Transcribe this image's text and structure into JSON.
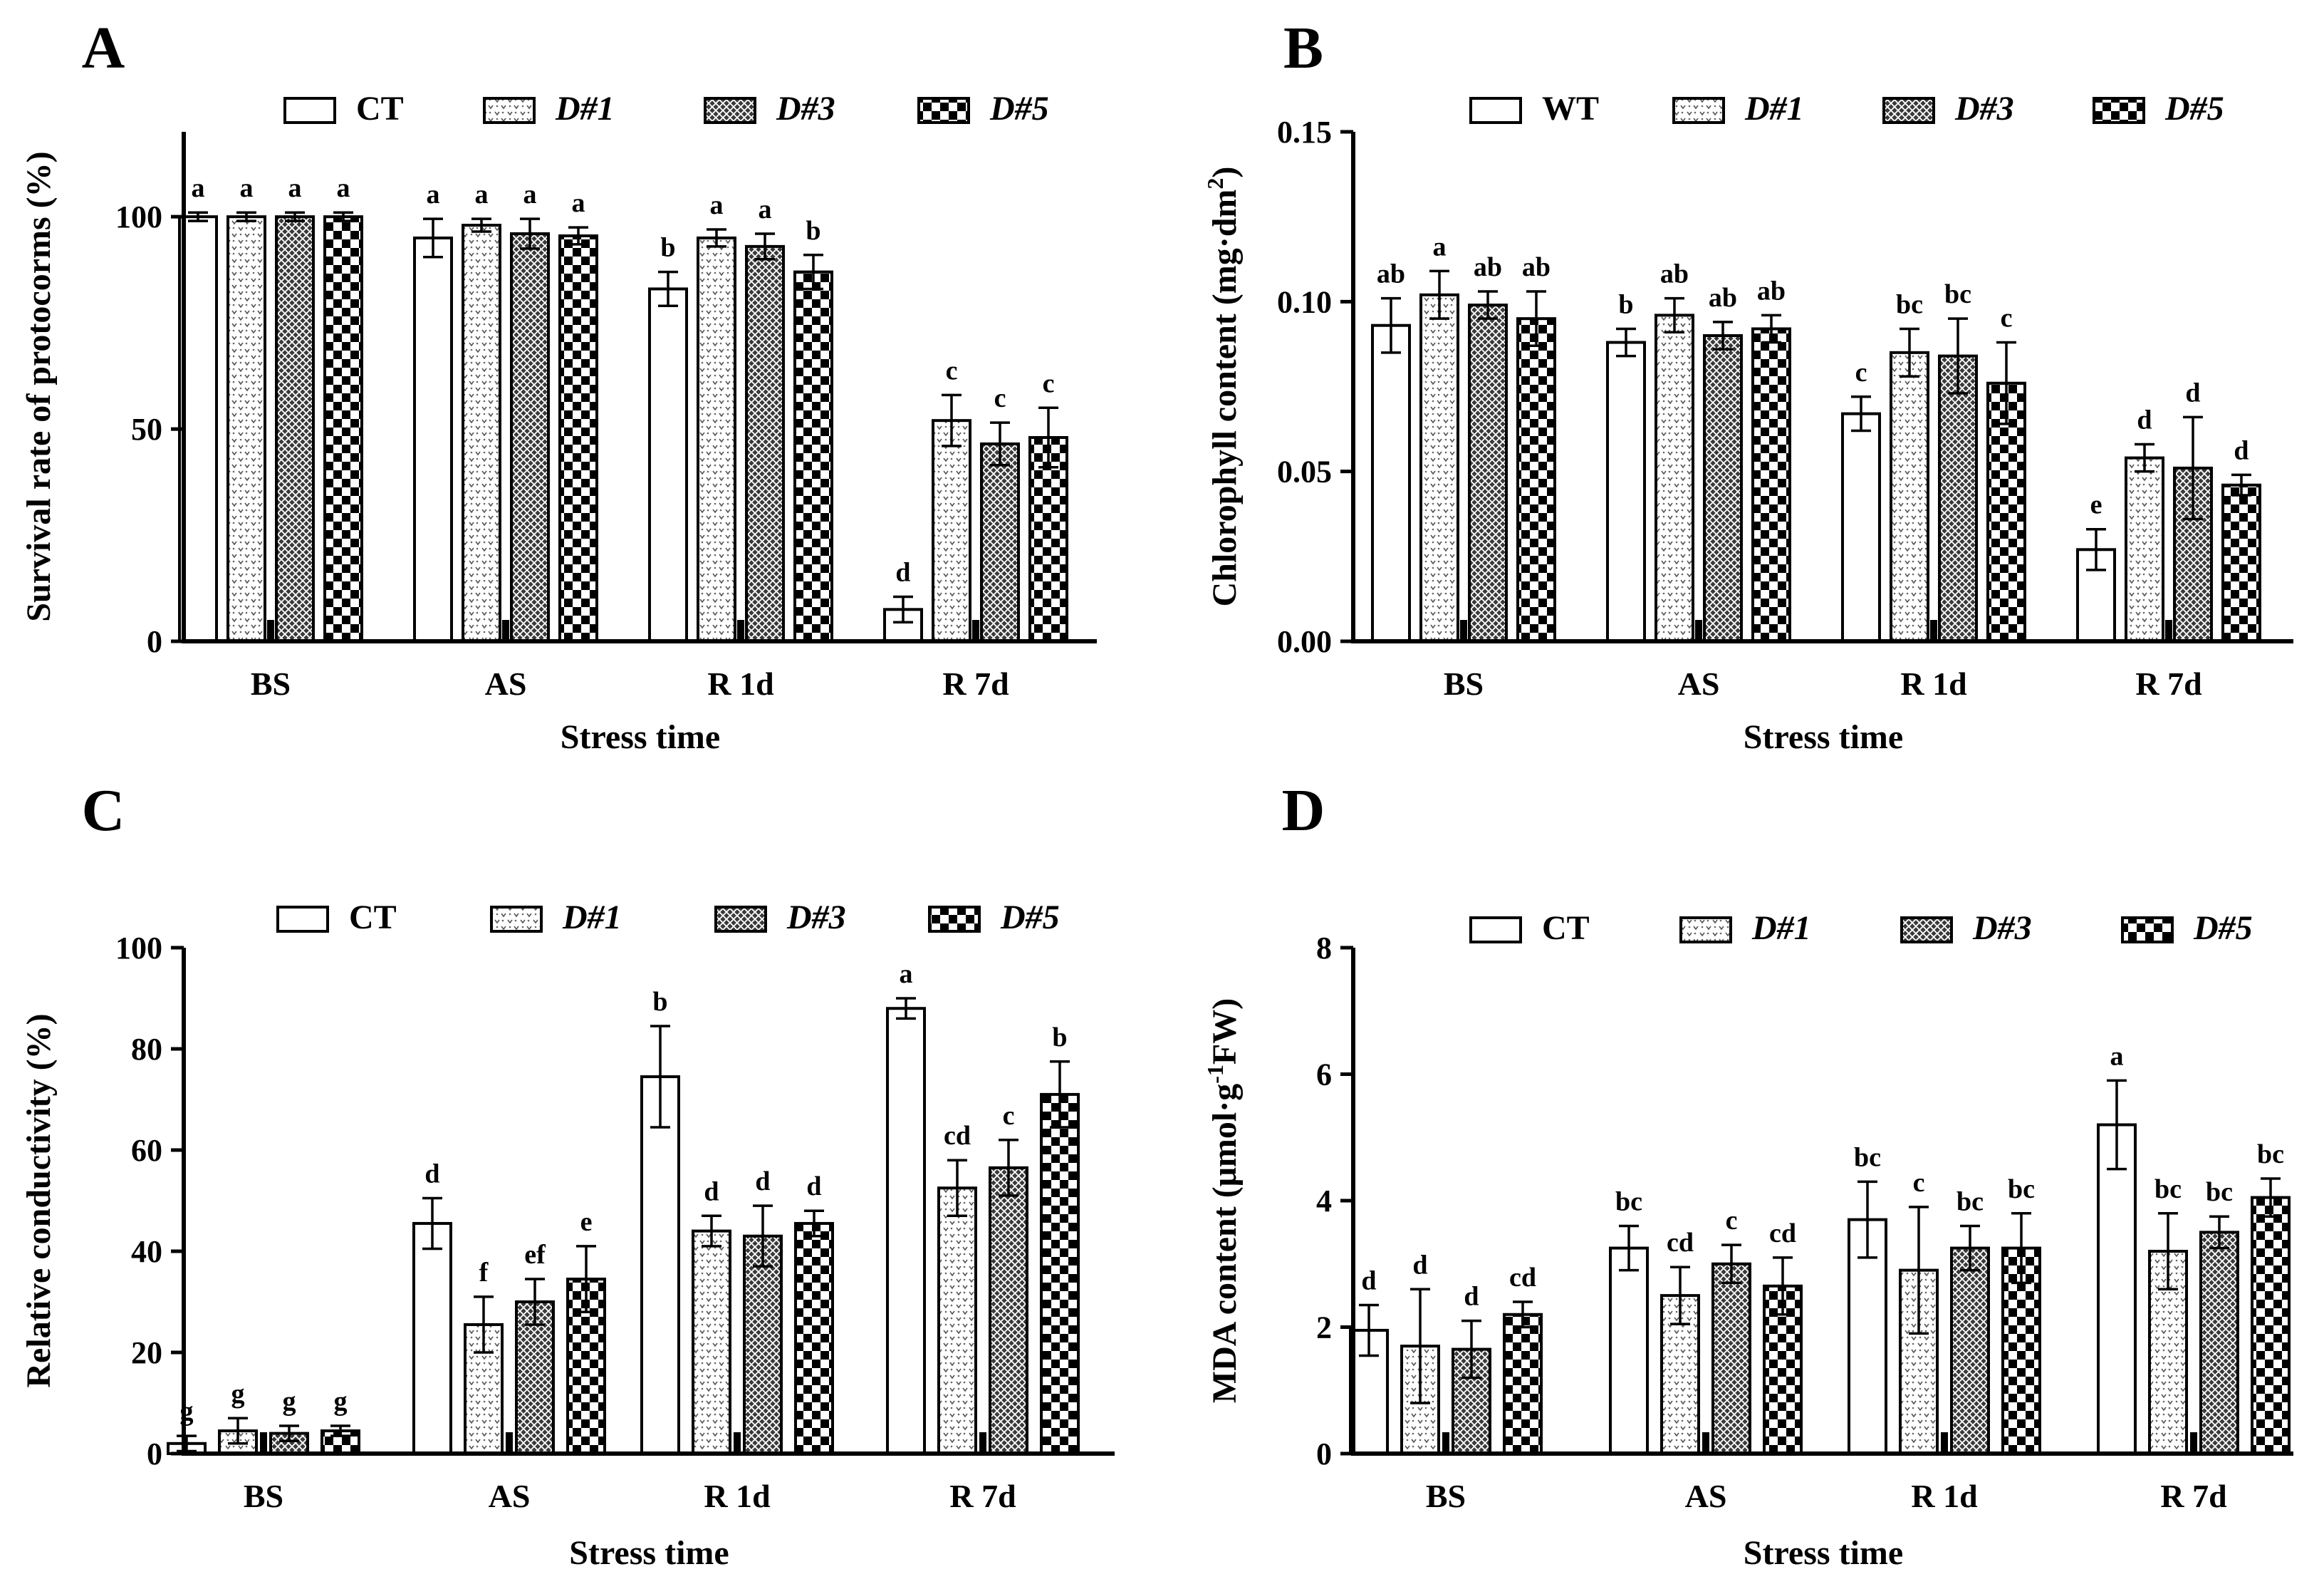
{
  "chart_data": [
    {
      "panel": "A",
      "type": "bar",
      "categories": [
        "BS",
        "AS",
        "R 1d",
        "R 7d"
      ],
      "xlabel": "Stress time",
      "ylabel": "Survival rate of protocorms (%)",
      "ylim": [
        0,
        120
      ],
      "yticks": [
        0,
        50,
        100
      ],
      "legend": "top",
      "series": [
        {
          "name": "CT",
          "pattern": "plain",
          "values": [
            100,
            95,
            83,
            7.5
          ],
          "errors": [
            1,
            4.5,
            4,
            3
          ],
          "letters": [
            "a",
            "a",
            "b",
            "d"
          ]
        },
        {
          "name": "D#1",
          "pattern": "dots",
          "values": [
            100,
            98,
            95,
            52
          ],
          "errors": [
            1,
            1.5,
            2,
            6
          ],
          "letters": [
            "a",
            "a",
            "a",
            "c"
          ]
        },
        {
          "name": "D#3",
          "pattern": "cross",
          "values": [
            100,
            96,
            93,
            46.5
          ],
          "errors": [
            1,
            3.5,
            3,
            5
          ],
          "letters": [
            "a",
            "a",
            "a",
            "c"
          ]
        },
        {
          "name": "D#5",
          "pattern": "checker",
          "values": [
            100,
            95.5,
            87,
            48
          ],
          "errors": [
            1,
            2,
            4,
            7
          ],
          "letters": [
            "a",
            "a",
            "b",
            "c"
          ]
        }
      ]
    },
    {
      "panel": "B",
      "type": "bar",
      "categories": [
        "BS",
        "AS",
        "R 1d",
        "R 7d"
      ],
      "xlabel": "Stress time",
      "ylabel": "Chlorophyll content (mg·dm",
      "ylabel_sup": "2",
      "ylabel_end": ")",
      "ylim": [
        0,
        0.15
      ],
      "yticks": [
        0.0,
        0.05,
        0.1,
        0.15
      ],
      "ytick_labels": [
        "0.00",
        "0.05",
        "0.10",
        "0.15"
      ],
      "legend": "top",
      "series": [
        {
          "name": "WT",
          "pattern": "plain",
          "values": [
            0.093,
            0.088,
            0.067,
            0.027
          ],
          "errors": [
            0.008,
            0.004,
            0.005,
            0.006
          ],
          "letters": [
            "ab",
            "b",
            "c",
            "e"
          ]
        },
        {
          "name": "D#1",
          "pattern": "dots",
          "values": [
            0.102,
            0.096,
            0.085,
            0.054
          ],
          "errors": [
            0.007,
            0.005,
            0.007,
            0.004
          ],
          "letters": [
            "a",
            "ab",
            "bc",
            "d"
          ]
        },
        {
          "name": "D#3",
          "pattern": "cross",
          "values": [
            0.099,
            0.09,
            0.084,
            0.051
          ],
          "errors": [
            0.004,
            0.004,
            0.011,
            0.015
          ],
          "letters": [
            "ab",
            "ab",
            "bc",
            "d"
          ]
        },
        {
          "name": "D#5",
          "pattern": "checker",
          "values": [
            0.095,
            0.092,
            0.076,
            0.046
          ],
          "errors": [
            0.008,
            0.004,
            0.012,
            0.003
          ],
          "letters": [
            "ab",
            "ab",
            "c",
            "d"
          ]
        }
      ]
    },
    {
      "panel": "C",
      "type": "bar",
      "categories": [
        "BS",
        "AS",
        "R 1d",
        "R 7d"
      ],
      "xlabel": "Stress time",
      "ylabel": "Relative conductivity (%)",
      "ylim": [
        0,
        100
      ],
      "yticks": [
        0,
        20,
        40,
        60,
        80,
        100
      ],
      "legend": "top",
      "series": [
        {
          "name": "CT",
          "pattern": "plain",
          "values": [
            2,
            45.5,
            74.5,
            88
          ],
          "errors": [
            1.5,
            5,
            10,
            2
          ],
          "letters": [
            "g",
            "d",
            "b",
            "a"
          ]
        },
        {
          "name": "D#1",
          "pattern": "dots",
          "values": [
            4.5,
            25.5,
            44,
            52.5
          ],
          "errors": [
            2.5,
            5.5,
            3,
            5.5
          ],
          "letters": [
            "g",
            "f",
            "d",
            "cd"
          ]
        },
        {
          "name": "D#3",
          "pattern": "cross",
          "values": [
            4,
            30,
            43,
            56.5
          ],
          "errors": [
            1.5,
            4.5,
            6,
            5.5
          ],
          "letters": [
            "g",
            "ef",
            "d",
            "c"
          ]
        },
        {
          "name": "D#5",
          "pattern": "checker",
          "values": [
            4.5,
            34.5,
            45.5,
            71
          ],
          "errors": [
            1,
            6.5,
            2.5,
            6.5
          ],
          "letters": [
            "g",
            "e",
            "d",
            "b"
          ]
        }
      ]
    },
    {
      "panel": "D",
      "type": "bar",
      "categories": [
        "BS",
        "AS",
        "R 1d",
        "R 7d"
      ],
      "xlabel": "Stress time",
      "ylabel": "MDA content (μmol·g",
      "ylabel_sup": "-1",
      "ylabel_end": "FW)",
      "ylim": [
        0,
        8
      ],
      "yticks": [
        0,
        2,
        4,
        6,
        8
      ],
      "legend": "top",
      "series": [
        {
          "name": "CT",
          "pattern": "plain",
          "values": [
            1.95,
            3.25,
            3.7,
            5.2
          ],
          "errors": [
            0.4,
            0.35,
            0.6,
            0.7
          ],
          "letters": [
            "d",
            "bc",
            "bc",
            "a"
          ]
        },
        {
          "name": "D#1",
          "pattern": "dots",
          "values": [
            1.7,
            2.5,
            2.9,
            3.2
          ],
          "errors": [
            0.9,
            0.45,
            1,
            0.6
          ],
          "letters": [
            "d",
            "cd",
            "c",
            "bc"
          ]
        },
        {
          "name": "D#3",
          "pattern": "cross",
          "values": [
            1.65,
            3,
            3.25,
            3.5
          ],
          "errors": [
            0.45,
            0.3,
            0.35,
            0.25
          ],
          "letters": [
            "d",
            "c",
            "bc",
            "bc"
          ]
        },
        {
          "name": "D#5",
          "pattern": "checker",
          "values": [
            2.2,
            2.65,
            3.25,
            4.05
          ],
          "errors": [
            0.2,
            0.45,
            0.55,
            0.3
          ],
          "letters": [
            "cd",
            "cd",
            "bc",
            "bc"
          ]
        }
      ]
    }
  ]
}
